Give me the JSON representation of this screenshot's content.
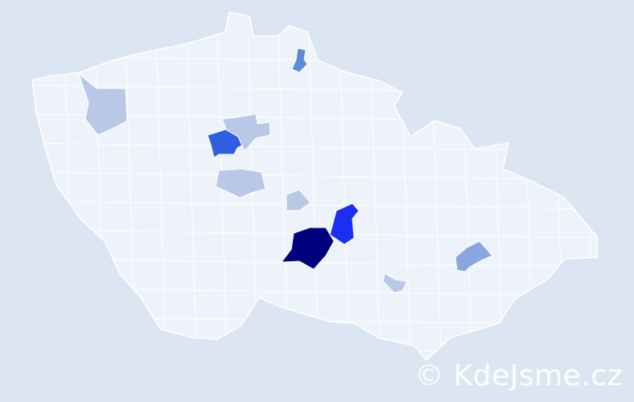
{
  "map": {
    "background_color": "#dce6f2",
    "land_color": "#eef2fa",
    "border_color": "#ffffff",
    "highlighted_regions": [
      {
        "id": "region-darkest",
        "color": "#00007f"
      },
      {
        "id": "region-bright-blue",
        "color": "#1a2ff0"
      },
      {
        "id": "region-mid-blue",
        "color": "#2f5fe0"
      },
      {
        "id": "region-north-blue",
        "color": "#5a8ad8"
      },
      {
        "id": "region-east-blue",
        "color": "#8aa6de"
      },
      {
        "id": "region-light-1",
        "color": "#b8c8e6"
      },
      {
        "id": "region-light-2",
        "color": "#b8c8e6"
      },
      {
        "id": "region-light-3",
        "color": "#b8c8e6"
      },
      {
        "id": "region-light-4",
        "color": "#b8c8e6"
      },
      {
        "id": "region-light-5",
        "color": "#b8c8e6"
      }
    ]
  },
  "watermark": "© KdeJsme.cz"
}
